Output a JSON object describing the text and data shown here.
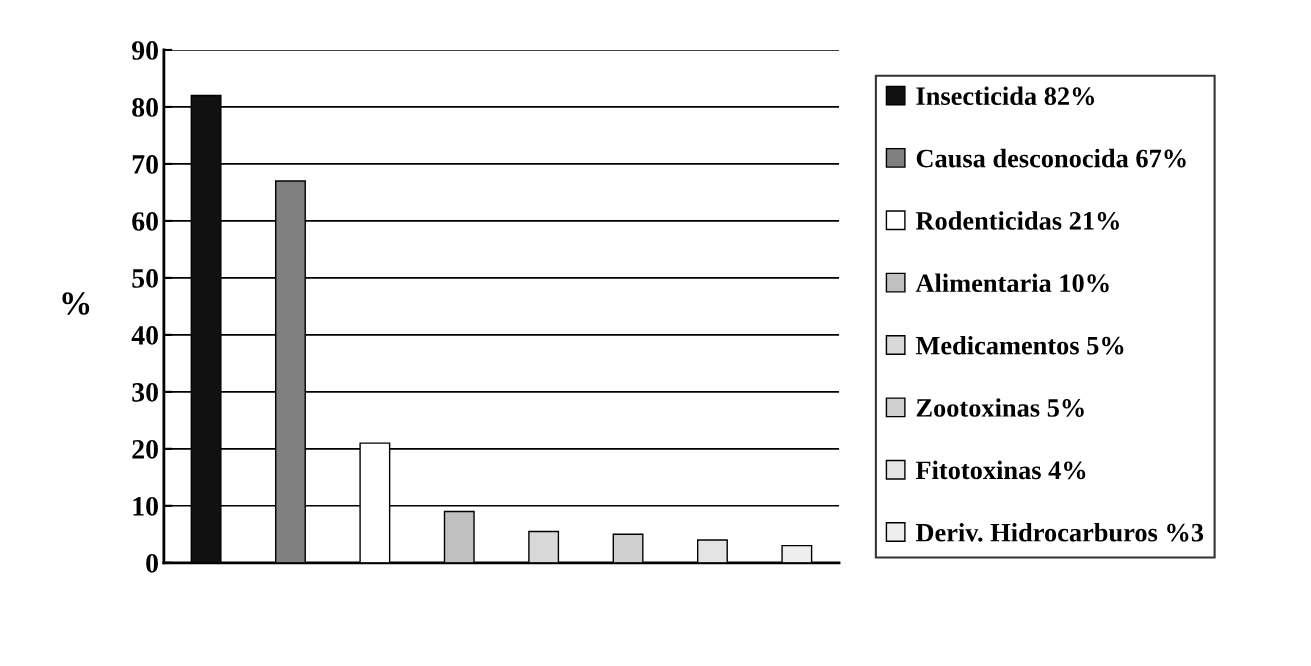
{
  "chart_data": {
    "type": "bar",
    "ylabel": "%",
    "categories": [
      null,
      null,
      null,
      null,
      null,
      null,
      null,
      null
    ],
    "series": [
      {
        "name": "Insecticida 82%",
        "color": "#111111",
        "values": [
          82,
          null,
          null,
          null,
          null,
          null,
          null,
          null
        ]
      },
      {
        "name": "Causa desconocida 67%",
        "color": "#808080",
        "values": [
          null,
          67,
          null,
          null,
          null,
          null,
          null,
          null
        ]
      },
      {
        "name": "Rodenticidas 21%",
        "color": "#ffffff",
        "values": [
          null,
          null,
          21,
          null,
          null,
          null,
          null,
          null
        ]
      },
      {
        "name": "Alimentaria 10%",
        "color": "#c0c0c0",
        "values": [
          null,
          null,
          null,
          9,
          null,
          null,
          null,
          null
        ]
      },
      {
        "name": "Medicamentos 5%",
        "color": "#d8d8d8",
        "values": [
          null,
          null,
          null,
          null,
          5.5,
          null,
          null,
          null
        ]
      },
      {
        "name": "Zootoxinas 5%",
        "color": "#cfcfcf",
        "values": [
          null,
          null,
          null,
          null,
          null,
          5,
          null,
          null
        ]
      },
      {
        "name": "Fitotoxinas 4%",
        "color": "#e4e4e4",
        "values": [
          null,
          null,
          null,
          null,
          null,
          null,
          4,
          null
        ]
      },
      {
        "name": "Deriv. Hidrocarburos %3",
        "color": "#eeeeee",
        "values": [
          null,
          null,
          null,
          null,
          null,
          null,
          null,
          3
        ]
      }
    ],
    "ylim": [
      0,
      90
    ],
    "yticks": [
      0,
      10,
      20,
      30,
      40,
      50,
      60,
      70,
      80,
      90
    ],
    "grid": "y",
    "legend": "right"
  }
}
